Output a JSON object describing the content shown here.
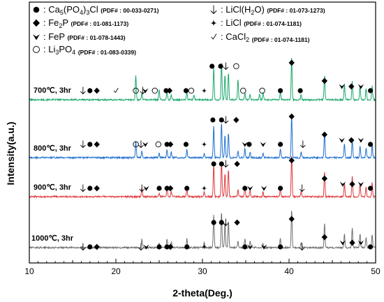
{
  "chart_data": {
    "type": "line",
    "xlabel": "2-theta(Deg.)",
    "ylabel": "Intensity(a.u.)",
    "xlim": [
      10,
      50
    ],
    "xticks": [
      10,
      20,
      30,
      40,
      50
    ],
    "y_ticks_shown": false,
    "legend": {
      "placement": "top",
      "entries": [
        {
          "symbol": "filled-circle",
          "name": "Ca5(PO4)3Cl",
          "pdf": "(PDF# : 00-033-0271)"
        },
        {
          "symbol": "filled-diamond",
          "name": "Fe2P",
          "pdf": "(PDF# : 01-081-1173)"
        },
        {
          "symbol": "filled-chevron",
          "name": "FeP",
          "pdf": "(PDF# : 01-078-1443)"
        },
        {
          "symbol": "open-circle",
          "name": "Li3PO4",
          "pdf": "(PDF# : 01-083-0339)"
        },
        {
          "symbol": "down-arrow",
          "name": "LiCl(H2O)",
          "pdf": "(PDF# : 01-073-1273)"
        },
        {
          "symbol": "four-point-star",
          "name": "LiCl",
          "pdf": "(PDF# : 01-074-1181)"
        },
        {
          "symbol": "check",
          "name": "CaCl2",
          "pdf": "(PDF# : 01-074-1181)"
        }
      ]
    },
    "series": [
      {
        "name": "700℃, 3hr",
        "color": "#1aa86b",
        "peaks": [
          [
            22.3,
            0.55
          ],
          [
            23.0,
            0.15
          ],
          [
            25.0,
            0.22
          ],
          [
            25.9,
            0.2
          ],
          [
            26.4,
            0.12
          ],
          [
            28.2,
            0.18
          ],
          [
            29.0,
            0.1
          ],
          [
            31.3,
            0.72
          ],
          [
            32.2,
            0.85
          ],
          [
            32.6,
            0.55
          ],
          [
            33.0,
            0.6
          ],
          [
            34.1,
            0.45
          ],
          [
            34.9,
            0.15
          ],
          [
            35.5,
            0.12
          ],
          [
            36.6,
            0.12
          ],
          [
            37.0,
            0.15
          ],
          [
            39.0,
            0.18
          ],
          [
            40.3,
            0.95
          ],
          [
            41.4,
            0.12
          ],
          [
            44.1,
            0.55
          ],
          [
            46.4,
            0.35
          ],
          [
            47.3,
            0.4
          ],
          [
            48.2,
            0.3
          ],
          [
            48.9,
            0.25
          ],
          [
            49.6,
            0.3
          ]
        ],
        "markers": [
          {
            "s": "down-arrow",
            "x": [
              16.2,
              23.1,
              32.7
            ]
          },
          {
            "s": "filled-circle",
            "x": [
              17.0,
              25.8,
              28.1,
              31.1,
              32.1,
              39.0,
              41.3,
              49.4
            ]
          },
          {
            "s": "filled-diamond",
            "x": [
              17.8,
              26.2,
              40.3,
              44.1,
              47.2
            ]
          },
          {
            "s": "check",
            "x": [
              20.0
            ]
          },
          {
            "s": "filled-chevron",
            "x": [
              23.4,
              46.1,
              48.3
            ]
          },
          {
            "s": "open-circle",
            "x": [
              22.3,
              24.5,
              28.7,
              33.9,
              34.7,
              36.9
            ]
          },
          {
            "s": "four-point-star",
            "x": [
              30.2
            ]
          }
        ]
      },
      {
        "name": "800℃, 3hr",
        "color": "#1f6fd1",
        "peaks": [
          [
            22.3,
            0.35
          ],
          [
            23.0,
            0.15
          ],
          [
            25.0,
            0.1
          ],
          [
            25.9,
            0.18
          ],
          [
            26.4,
            0.12
          ],
          [
            28.2,
            0.18
          ],
          [
            30.2,
            0.1
          ],
          [
            31.3,
            0.7
          ],
          [
            32.2,
            0.78
          ],
          [
            32.6,
            0.5
          ],
          [
            33.0,
            0.55
          ],
          [
            34.1,
            0.15
          ],
          [
            34.9,
            0.2
          ],
          [
            35.5,
            0.12
          ],
          [
            37.0,
            0.1
          ],
          [
            39.0,
            0.2
          ],
          [
            40.3,
            0.95
          ],
          [
            41.4,
            0.12
          ],
          [
            44.1,
            0.55
          ],
          [
            46.4,
            0.3
          ],
          [
            47.3,
            0.4
          ],
          [
            48.2,
            0.25
          ],
          [
            48.9,
            0.22
          ],
          [
            49.6,
            0.28
          ]
        ],
        "markers": [
          {
            "s": "down-arrow",
            "x": [
              16.2,
              22.9,
              32.7,
              41.6
            ]
          },
          {
            "s": "filled-circle",
            "x": [
              17.0,
              25.9,
              28.1,
              31.2,
              32.2,
              35.4,
              39.0,
              49.4
            ]
          },
          {
            "s": "filled-diamond",
            "x": [
              17.8,
              26.3,
              33.9,
              40.3,
              44.1,
              47.2
            ]
          },
          {
            "s": "open-circle",
            "x": [
              22.3,
              24.9
            ]
          },
          {
            "s": "filled-chevron",
            "x": [
              23.4,
              34.9,
              37.0,
              46.1,
              48.3
            ]
          },
          {
            "s": "four-point-star",
            "x": [
              30.2
            ]
          }
        ]
      },
      {
        "name": "900℃, 3hr",
        "color": "#e0383c",
        "peaks": [
          [
            23.0,
            0.2
          ],
          [
            25.0,
            0.08
          ],
          [
            25.9,
            0.2
          ],
          [
            26.4,
            0.12
          ],
          [
            28.2,
            0.2
          ],
          [
            30.2,
            0.1
          ],
          [
            31.3,
            0.72
          ],
          [
            32.2,
            0.8
          ],
          [
            32.6,
            0.5
          ],
          [
            33.0,
            0.6
          ],
          [
            34.1,
            0.15
          ],
          [
            34.9,
            0.2
          ],
          [
            35.5,
            0.15
          ],
          [
            37.0,
            0.1
          ],
          [
            39.0,
            0.2
          ],
          [
            40.3,
            0.95
          ],
          [
            41.4,
            0.12
          ],
          [
            44.1,
            0.55
          ],
          [
            46.4,
            0.3
          ],
          [
            47.3,
            0.45
          ],
          [
            48.2,
            0.3
          ],
          [
            48.9,
            0.22
          ],
          [
            49.6,
            0.3
          ]
        ],
        "markers": [
          {
            "s": "down-arrow",
            "x": [
              16.2,
              23.0,
              32.7,
              41.5
            ]
          },
          {
            "s": "filled-circle",
            "x": [
              17.0,
              25.0,
              25.9,
              28.2,
              31.3,
              32.2,
              34.9,
              39.0,
              49.4
            ]
          },
          {
            "s": "filled-diamond",
            "x": [
              17.8,
              26.3,
              34.0,
              40.3,
              44.1,
              47.3
            ]
          },
          {
            "s": "filled-chevron",
            "x": [
              23.5,
              35.5,
              37.1,
              46.2,
              48.3
            ]
          },
          {
            "s": "four-point-star",
            "x": [
              30.2
            ]
          }
        ]
      },
      {
        "name": "1000℃, 3hr",
        "color": "#6f6f6f",
        "peaks": [
          [
            23.0,
            0.2
          ],
          [
            25.0,
            0.1
          ],
          [
            25.9,
            0.2
          ],
          [
            26.4,
            0.12
          ],
          [
            28.2,
            0.2
          ],
          [
            30.2,
            0.1
          ],
          [
            31.3,
            0.72
          ],
          [
            32.2,
            0.8
          ],
          [
            32.6,
            0.55
          ],
          [
            33.0,
            0.6
          ],
          [
            34.1,
            0.15
          ],
          [
            34.9,
            0.2
          ],
          [
            35.5,
            0.15
          ],
          [
            37.0,
            0.1
          ],
          [
            39.0,
            0.2
          ],
          [
            40.3,
            0.85
          ],
          [
            41.4,
            0.12
          ],
          [
            44.1,
            0.55
          ],
          [
            46.4,
            0.3
          ],
          [
            47.3,
            0.45
          ],
          [
            48.2,
            0.3
          ],
          [
            48.9,
            0.22
          ],
          [
            49.6,
            0.3
          ]
        ],
        "markers": [
          {
            "s": "down-arrow",
            "x": [
              16.2,
              22.9,
              32.7,
              41.5
            ]
          },
          {
            "s": "filled-circle",
            "x": [
              17.0,
              25.0,
              25.9,
              28.2,
              31.3,
              32.2,
              34.9,
              39.0,
              49.4
            ]
          },
          {
            "s": "filled-diamond",
            "x": [
              17.8,
              26.3,
              34.0,
              40.3,
              44.1,
              47.3
            ]
          },
          {
            "s": "filled-chevron",
            "x": [
              23.5,
              35.5,
              37.1,
              46.2,
              48.3
            ]
          },
          {
            "s": "four-point-star",
            "x": [
              30.2
            ]
          }
        ]
      }
    ]
  }
}
